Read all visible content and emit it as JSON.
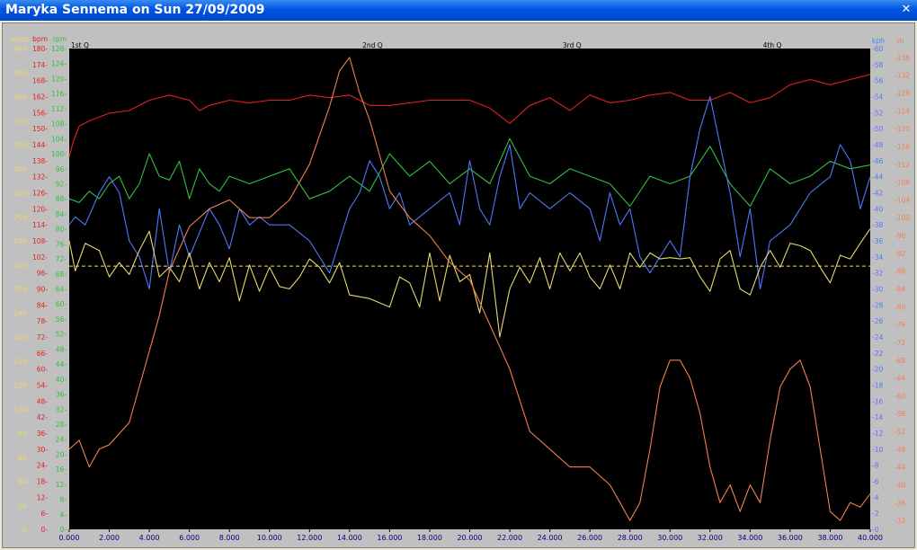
{
  "window": {
    "title": "Maryka Sennema on Sun 27/09/2009",
    "close_glyph": "✕"
  },
  "chart_data": {
    "type": "line",
    "x": [
      0,
      2000,
      4000,
      6000,
      8000,
      10000,
      12000,
      14000,
      16000,
      18000,
      20000,
      22000,
      24000,
      26000,
      28000,
      30000,
      32000,
      34000,
      36000,
      38000,
      40000
    ],
    "xlim": [
      0,
      40000
    ],
    "x_ticks": [
      "0.000",
      "2.000",
      "4.000",
      "6.000",
      "8.000",
      "10.000",
      "12.000",
      "14.000",
      "16.000",
      "18.000",
      "20.000",
      "22.000",
      "24.000",
      "26.000",
      "28.000",
      "30.000",
      "32.000",
      "34.000",
      "36.000",
      "38.000",
      "40.000"
    ],
    "quarters": [
      "1st Q",
      "2nd Q",
      "3rd Q",
      "4th Q"
    ],
    "grid": false,
    "background": "#000000",
    "axes": {
      "watts": {
        "label": "watts",
        "color": "#e8d870",
        "ylim": [
          0,
          400
        ],
        "ticks": [
          "0-",
          "20-",
          "40-",
          "60-",
          "80-",
          "100-",
          "120-",
          "140-",
          "160-",
          "180-",
          "200-",
          "220-",
          "240-",
          "260-",
          "280-",
          "300-",
          "320-",
          "340-",
          "360-",
          "380-",
          "400-"
        ]
      },
      "bpm": {
        "label": "bpm",
        "color": "#e02020",
        "ylim": [
          0,
          186
        ],
        "ticks": [
          "0-",
          "6-",
          "12-",
          "18-",
          "24-",
          "30-",
          "36-",
          "42-",
          "48-",
          "54-",
          "60-",
          "66-",
          "72-",
          "78-",
          "84-",
          "90-",
          "96-",
          "102-",
          "108-",
          "114-",
          "120-",
          "126-",
          "132-",
          "138-",
          "144-",
          "150-",
          "156-",
          "162-",
          "168-",
          "174-",
          "180-"
        ]
      },
      "rpm": {
        "label": "rpm",
        "color": "#30c040",
        "ylim": [
          0,
          128
        ],
        "ticks": [
          "0-",
          "4-",
          "8-",
          "12-",
          "16-",
          "20-",
          "24-",
          "28-",
          "32-",
          "36-",
          "40-",
          "44-",
          "48-",
          "52-",
          "56-",
          "60-",
          "64-",
          "68-",
          "72-",
          "76-",
          "80-",
          "84-",
          "88-",
          "92-",
          "96-",
          "100-",
          "104-",
          "108-",
          "112-",
          "116-",
          "120-",
          "124-",
          "128-"
        ]
      },
      "kph": {
        "label": "kph",
        "color": "#5078ff",
        "ylim": [
          0,
          60
        ],
        "ticks": [
          "-0",
          "-2",
          "-4",
          "-6",
          "-8",
          "-10",
          "-12",
          "-14",
          "-16",
          "-18",
          "-20",
          "-22",
          "-24",
          "-26",
          "-28",
          "-30",
          "-32",
          "-34",
          "-36",
          "-38",
          "-40",
          "-42",
          "-44",
          "-46",
          "-48",
          "-50",
          "-52",
          "-54",
          "-56",
          "-58",
          "-60"
        ]
      },
      "m": {
        "label": "m",
        "color": "#f08050",
        "ylim": [
          30,
          138
        ],
        "ticks": [
          "-32",
          "-36",
          "-40",
          "-44",
          "-48",
          "-52",
          "-56",
          "-60",
          "-64",
          "-68",
          "-72",
          "-76",
          "-80",
          "-84",
          "-88",
          "-92",
          "-96",
          "-100",
          "-104",
          "-108",
          "-112",
          "-116",
          "-120",
          "-124",
          "-128",
          "-132",
          "-136"
        ]
      }
    },
    "reference_line": {
      "axis": "watts",
      "value": 219,
      "color": "#f0e070"
    },
    "series": [
      {
        "axis": "bpm",
        "color": "#e02020",
        "x": [
          0,
          200,
          500,
          1000,
          2000,
          3000,
          4000,
          5000,
          6000,
          6500,
          7000,
          8000,
          9000,
          10000,
          11000,
          12000,
          13000,
          14000,
          15000,
          16000,
          17000,
          18000,
          19000,
          20000,
          21000,
          22000,
          23000,
          24000,
          25000,
          26000,
          27000,
          28000,
          29000,
          30000,
          31000,
          32000,
          33000,
          34000,
          35000,
          36000,
          37000,
          38000,
          39000,
          40000
        ],
        "values": [
          144,
          150,
          156,
          158,
          161,
          162,
          166,
          168,
          166,
          162,
          164,
          166,
          165,
          166,
          166,
          168,
          167,
          168,
          164,
          164,
          165,
          166,
          166,
          166,
          163,
          157,
          164,
          167,
          162,
          168,
          165,
          166,
          168,
          169,
          166,
          166,
          169,
          165,
          167,
          172,
          174,
          172,
          174,
          176
        ]
      },
      {
        "axis": "rpm",
        "color": "#30c040",
        "x": [
          0,
          500,
          1000,
          1500,
          2000,
          2500,
          3000,
          3500,
          4000,
          4500,
          5000,
          5500,
          6000,
          6500,
          7000,
          7500,
          8000,
          9000,
          10000,
          11000,
          12000,
          13000,
          14000,
          15000,
          16000,
          17000,
          18000,
          19000,
          20000,
          21000,
          22000,
          23000,
          24000,
          25000,
          26000,
          27000,
          28000,
          29000,
          30000,
          31000,
          31500,
          32000,
          33000,
          34000,
          35000,
          36000,
          37000,
          38000,
          39000,
          40000
        ],
        "values": [
          88,
          87,
          90,
          88,
          92,
          94,
          88,
          92,
          100,
          94,
          93,
          98,
          88,
          96,
          92,
          90,
          94,
          92,
          94,
          96,
          88,
          90,
          94,
          90,
          100,
          94,
          98,
          92,
          96,
          92,
          104,
          94,
          92,
          96,
          94,
          92,
          86,
          94,
          92,
          94,
          98,
          102,
          92,
          86,
          96,
          92,
          94,
          98,
          96,
          97
        ]
      },
      {
        "axis": "kph",
        "color": "#5078ff",
        "x": [
          0,
          300,
          800,
          1500,
          2000,
          2500,
          3000,
          3500,
          4000,
          4500,
          5000,
          5500,
          6000,
          6500,
          7000,
          7500,
          8000,
          8500,
          9000,
          9500,
          10000,
          11000,
          12000,
          12500,
          13000,
          13500,
          14000,
          14500,
          15000,
          15500,
          16000,
          16500,
          17000,
          18000,
          19000,
          19500,
          20000,
          20500,
          21000,
          21500,
          22000,
          22500,
          23000,
          24000,
          25000,
          26000,
          26500,
          27000,
          27500,
          28000,
          28500,
          29000,
          29500,
          30000,
          30500,
          31000,
          31500,
          32000,
          32500,
          33000,
          33500,
          34000,
          34500,
          35000,
          36000,
          37000,
          38000,
          38500,
          39000,
          39500,
          40000
        ],
        "values": [
          38,
          39,
          38,
          42,
          44,
          42,
          36,
          34,
          30,
          40,
          32,
          38,
          34,
          37,
          40,
          38,
          35,
          40,
          38,
          39,
          38,
          38,
          36,
          34,
          32,
          36,
          40,
          42,
          46,
          44,
          40,
          42,
          38,
          40,
          42,
          38,
          46,
          40,
          38,
          44,
          48,
          40,
          42,
          40,
          42,
          40,
          36,
          42,
          38,
          40,
          34,
          32,
          34,
          36,
          34,
          44,
          50,
          54,
          48,
          42,
          34,
          40,
          30,
          36,
          38,
          42,
          44,
          48,
          46,
          40,
          44
        ]
      },
      {
        "axis": "watts",
        "color": "#e8d870",
        "x": [
          0,
          300,
          800,
          1500,
          2000,
          2500,
          3000,
          3500,
          4000,
          4500,
          5000,
          5500,
          6000,
          6500,
          7000,
          7500,
          8000,
          8500,
          9000,
          9500,
          10000,
          10500,
          11000,
          11500,
          12000,
          12500,
          13000,
          13500,
          14000,
          15000,
          16000,
          16500,
          17000,
          17500,
          18000,
          18500,
          19000,
          19500,
          20000,
          20500,
          21000,
          21500,
          22000,
          22500,
          23000,
          23500,
          24000,
          24500,
          25000,
          25500,
          26000,
          26500,
          27000,
          27500,
          28000,
          28500,
          29000,
          29500,
          30000,
          30500,
          31000,
          31500,
          32000,
          32500,
          33000,
          33500,
          34000,
          34500,
          35000,
          35500,
          36000,
          36500,
          37000,
          37500,
          38000,
          38500,
          39000,
          39500,
          40000
        ],
        "values": [
          240,
          215,
          238,
          232,
          210,
          222,
          212,
          232,
          248,
          210,
          218,
          206,
          230,
          200,
          222,
          206,
          226,
          190,
          220,
          198,
          218,
          202,
          200,
          210,
          225,
          218,
          205,
          222,
          195,
          192,
          185,
          210,
          205,
          185,
          230,
          190,
          228,
          206,
          212,
          180,
          230,
          160,
          200,
          218,
          205,
          226,
          200,
          230,
          215,
          230,
          210,
          200,
          220,
          200,
          230,
          218,
          230,
          225,
          226,
          225,
          226,
          210,
          198,
          225,
          232,
          200,
          195,
          218,
          232,
          218,
          238,
          236,
          232,
          218,
          205,
          228,
          225,
          238,
          250
        ]
      },
      {
        "axis": "m",
        "color": "#f08050",
        "x": [
          0,
          500,
          1000,
          1500,
          2000,
          3000,
          4000,
          4500,
          5000,
          6000,
          7000,
          8000,
          9000,
          10000,
          11000,
          12000,
          13000,
          13500,
          14000,
          14500,
          15000,
          15500,
          16000,
          17000,
          18000,
          19000,
          20000,
          21000,
          22000,
          23000,
          24000,
          25000,
          26000,
          27000,
          27500,
          28000,
          28500,
          29000,
          29500,
          30000,
          30500,
          31000,
          31500,
          32000,
          32500,
          33000,
          33500,
          34000,
          34500,
          35000,
          35500,
          36000,
          36500,
          37000,
          37500,
          38000,
          38500,
          39000,
          39500,
          40000
        ],
        "values": [
          48,
          50,
          44,
          48,
          49,
          54,
          70,
          78,
          88,
          98,
          102,
          104,
          100,
          100,
          104,
          112,
          125,
          133,
          136,
          128,
          122,
          114,
          106,
          100,
          96,
          90,
          86,
          76,
          66,
          52,
          48,
          44,
          44,
          40,
          36,
          32,
          36,
          48,
          62,
          68,
          68,
          64,
          56,
          44,
          36,
          40,
          34,
          40,
          36,
          50,
          62,
          66,
          68,
          62,
          48,
          34,
          32,
          36,
          35,
          38
        ]
      }
    ]
  }
}
